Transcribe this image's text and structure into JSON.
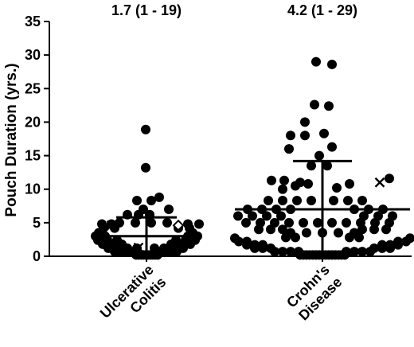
{
  "chart_data": {
    "type": "scatter",
    "ylabel": "Pouch Duration (yrs.)",
    "ylim": [
      0,
      35
    ],
    "yticks": [
      0,
      5,
      10,
      15,
      20,
      25,
      30,
      35
    ],
    "grid": false,
    "categories": [
      {
        "lines": [
          "Ulcerative",
          "Colitis"
        ],
        "annotation": "1.7 (1 - 19)",
        "mean": 3.0,
        "sd_upper": 5.8,
        "sd_lower": 0.2,
        "points": [
          {
            "dx": -13,
            "y": 0.2
          },
          {
            "dx": -10,
            "y": 0.2
          },
          {
            "dx": -7,
            "y": 0.2
          },
          {
            "dx": -4,
            "y": 0.2
          },
          {
            "dx": -1,
            "y": 0.2
          },
          {
            "dx": 2,
            "y": 0.2
          },
          {
            "dx": 5,
            "y": 0.2
          },
          {
            "dx": 8,
            "y": 0.2
          },
          {
            "dx": 11,
            "y": 0.2
          },
          {
            "dx": 14,
            "y": 0.2
          },
          {
            "dx": -40,
            "y": 0.7
          },
          {
            "dx": -30,
            "y": 0.7
          },
          {
            "dx": -20,
            "y": 0.7
          },
          {
            "dx": 18,
            "y": 0.7
          },
          {
            "dx": 28,
            "y": 0.7
          },
          {
            "dx": 38,
            "y": 0.7
          },
          {
            "dx": -48,
            "y": 1.2
          },
          {
            "dx": -36,
            "y": 1.2
          },
          {
            "dx": -24,
            "y": 1.2
          },
          {
            "dx": -12,
            "y": 1.2
          },
          {
            "dx": 10,
            "y": 1.2
          },
          {
            "dx": 22,
            "y": 1.2
          },
          {
            "dx": 34,
            "y": 1.2
          },
          {
            "dx": 46,
            "y": 1.2
          },
          {
            "dx": -55,
            "y": 1.8
          },
          {
            "dx": -43,
            "y": 1.8
          },
          {
            "dx": -31,
            "y": 1.8
          },
          {
            "dx": 31,
            "y": 1.8
          },
          {
            "dx": 43,
            "y": 1.8
          },
          {
            "dx": 55,
            "y": 1.8
          },
          {
            "dx": -61,
            "y": 2.4
          },
          {
            "dx": -49,
            "y": 2.4
          },
          {
            "dx": -37,
            "y": 2.4
          },
          {
            "dx": 37,
            "y": 2.4
          },
          {
            "dx": 49,
            "y": 2.4
          },
          {
            "dx": 61,
            "y": 2.4
          },
          {
            "dx": -64,
            "y": 3.0
          },
          {
            "dx": -52,
            "y": 3.0
          },
          {
            "dx": 52,
            "y": 3.0
          },
          {
            "dx": 64,
            "y": 3.0
          },
          {
            "dx": -60,
            "y": 3.5
          },
          {
            "dx": 58,
            "y": 3.5
          },
          {
            "dx": -54,
            "y": 4.2
          },
          {
            "dx": -40,
            "y": 4.2
          },
          {
            "dx": 40,
            "y": 4.2
          },
          {
            "dx": 54,
            "y": 4.2
          },
          {
            "dx": -56,
            "y": 4.8
          },
          {
            "dx": -44,
            "y": 4.8
          },
          {
            "dx": 52,
            "y": 4.8
          },
          {
            "dx": 66,
            "y": 4.8
          },
          {
            "dx": -34,
            "y": 5.0
          },
          {
            "dx": -14,
            "y": 5.0
          },
          {
            "dx": 6,
            "y": 5.0
          },
          {
            "dx": 26,
            "y": 5.0
          },
          {
            "dx": -24,
            "y": 6.2
          },
          {
            "dx": -10,
            "y": 6.2
          },
          {
            "dx": 4,
            "y": 6.2
          },
          {
            "dx": -4,
            "y": 7.0
          },
          {
            "dx": 28,
            "y": 7.0
          },
          {
            "dx": -12,
            "y": 8.3
          },
          {
            "dx": 6,
            "y": 8.3
          },
          {
            "dx": 16,
            "y": 8.8
          },
          {
            "dx": -1,
            "y": 13.2
          },
          {
            "dx": -1,
            "y": 18.9
          }
        ],
        "crosses": [
          {
            "dx": -44,
            "y": 4.6
          },
          {
            "dx": -10,
            "y": 1.3
          }
        ],
        "diamonds": [
          {
            "dx": 40,
            "y": 4.6
          }
        ]
      },
      {
        "lines": [
          "Crohn's",
          "Disease"
        ],
        "annotation": "4.2 (1 - 29)",
        "mean": 7.0,
        "sd_upper": 14.2,
        "sd_lower": 0.2,
        "points": [
          {
            "dx": -28,
            "y": 0.2
          },
          {
            "dx": -24,
            "y": 0.2
          },
          {
            "dx": -20,
            "y": 0.2
          },
          {
            "dx": -16,
            "y": 0.2
          },
          {
            "dx": -12,
            "y": 0.2
          },
          {
            "dx": -8,
            "y": 0.2
          },
          {
            "dx": -4,
            "y": 0.2
          },
          {
            "dx": 0,
            "y": 0.2
          },
          {
            "dx": 4,
            "y": 0.2
          },
          {
            "dx": 8,
            "y": 0.2
          },
          {
            "dx": 12,
            "y": 0.2
          },
          {
            "dx": 16,
            "y": 0.2
          },
          {
            "dx": 20,
            "y": 0.2
          },
          {
            "dx": 24,
            "y": 0.2
          },
          {
            "dx": 28,
            "y": 0.2
          },
          {
            "dx": -60,
            "y": 0.7
          },
          {
            "dx": -50,
            "y": 0.7
          },
          {
            "dx": -40,
            "y": 0.7
          },
          {
            "dx": -30,
            "y": 0.7
          },
          {
            "dx": 30,
            "y": 0.7
          },
          {
            "dx": 40,
            "y": 0.7
          },
          {
            "dx": 50,
            "y": 0.7
          },
          {
            "dx": 60,
            "y": 0.7
          },
          {
            "dx": -85,
            "y": 1.2
          },
          {
            "dx": -75,
            "y": 1.2
          },
          {
            "dx": -65,
            "y": 1.2
          },
          {
            "dx": 65,
            "y": 1.2
          },
          {
            "dx": 75,
            "y": 1.2
          },
          {
            "dx": 85,
            "y": 1.2
          },
          {
            "dx": -95,
            "y": 1.7
          },
          {
            "dx": -85,
            "y": 1.7
          },
          {
            "dx": -75,
            "y": 1.7
          },
          {
            "dx": 75,
            "y": 1.7
          },
          {
            "dx": 85,
            "y": 1.7
          },
          {
            "dx": 95,
            "y": 1.7
          },
          {
            "dx": -105,
            "y": 2.2
          },
          {
            "dx": -95,
            "y": 2.2
          },
          {
            "dx": 95,
            "y": 2.2
          },
          {
            "dx": 105,
            "y": 2.2
          },
          {
            "dx": -110,
            "y": 2.7
          },
          {
            "dx": 110,
            "y": 2.7
          },
          {
            "dx": -46,
            "y": 2.8
          },
          {
            "dx": -34,
            "y": 2.8
          },
          {
            "dx": 34,
            "y": 2.8
          },
          {
            "dx": 46,
            "y": 2.8
          },
          {
            "dx": -40,
            "y": 3.5
          },
          {
            "dx": -20,
            "y": 3.5
          },
          {
            "dx": 0,
            "y": 3.5
          },
          {
            "dx": 20,
            "y": 3.5
          },
          {
            "dx": 40,
            "y": 3.5
          },
          {
            "dx": -80,
            "y": 4.0
          },
          {
            "dx": -65,
            "y": 4.0
          },
          {
            "dx": -50,
            "y": 4.0
          },
          {
            "dx": 50,
            "y": 4.0
          },
          {
            "dx": 65,
            "y": 4.0
          },
          {
            "dx": 80,
            "y": 4.0
          },
          {
            "dx": -96,
            "y": 5.0
          },
          {
            "dx": -78,
            "y": 5.0
          },
          {
            "dx": -60,
            "y": 5.0
          },
          {
            "dx": -42,
            "y": 5.0
          },
          {
            "dx": -24,
            "y": 5.0
          },
          {
            "dx": -6,
            "y": 5.0
          },
          {
            "dx": 12,
            "y": 5.0
          },
          {
            "dx": 30,
            "y": 5.0
          },
          {
            "dx": 48,
            "y": 5.0
          },
          {
            "dx": 66,
            "y": 5.0
          },
          {
            "dx": 84,
            "y": 5.0
          },
          {
            "dx": -106,
            "y": 6.0
          },
          {
            "dx": -88,
            "y": 6.0
          },
          {
            "dx": -70,
            "y": 6.0
          },
          {
            "dx": -52,
            "y": 6.0
          },
          {
            "dx": 52,
            "y": 6.0
          },
          {
            "dx": 70,
            "y": 6.0
          },
          {
            "dx": 88,
            "y": 6.0
          },
          {
            "dx": -94,
            "y": 7.0
          },
          {
            "dx": -76,
            "y": 7.0
          },
          {
            "dx": -58,
            "y": 7.0
          },
          {
            "dx": -40,
            "y": 7.0
          },
          {
            "dx": 40,
            "y": 7.0
          },
          {
            "dx": 58,
            "y": 7.0
          },
          {
            "dx": 76,
            "y": 7.0
          },
          {
            "dx": -68,
            "y": 8.3
          },
          {
            "dx": -50,
            "y": 8.3
          },
          {
            "dx": -32,
            "y": 8.3
          },
          {
            "dx": -14,
            "y": 8.3
          },
          {
            "dx": 14,
            "y": 8.3
          },
          {
            "dx": 32,
            "y": 8.3
          },
          {
            "dx": 50,
            "y": 8.3
          },
          {
            "dx": -50,
            "y": 10.0
          },
          {
            "dx": -34,
            "y": 10.5
          },
          {
            "dx": -18,
            "y": 10.8
          },
          {
            "dx": 18,
            "y": 10.2
          },
          {
            "dx": 34,
            "y": 10.8
          },
          {
            "dx": -64,
            "y": 11.3
          },
          {
            "dx": -48,
            "y": 11.3
          },
          {
            "dx": -28,
            "y": 11.0
          },
          {
            "dx": 84,
            "y": 11.6
          },
          {
            "dx": -14,
            "y": 13.5
          },
          {
            "dx": 6,
            "y": 13.5
          },
          {
            "dx": -4,
            "y": 15.0
          },
          {
            "dx": -42,
            "y": 16.0
          },
          {
            "dx": 12,
            "y": 16.3
          },
          {
            "dx": -40,
            "y": 18.0
          },
          {
            "dx": -22,
            "y": 18.0
          },
          {
            "dx": 2,
            "y": 18.3
          },
          {
            "dx": -22,
            "y": 20.0
          },
          {
            "dx": -10,
            "y": 22.6
          },
          {
            "dx": 8,
            "y": 22.4
          },
          {
            "dx": -8,
            "y": 29.0
          },
          {
            "dx": 12,
            "y": 28.6
          }
        ],
        "crosses": [
          {
            "dx": 72,
            "y": 11.0
          }
        ],
        "diamonds": []
      }
    ]
  }
}
